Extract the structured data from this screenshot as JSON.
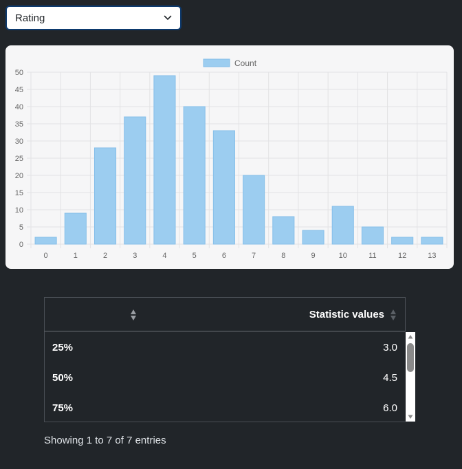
{
  "select": {
    "value": "Rating"
  },
  "chart_data": {
    "type": "bar",
    "categories": [
      "0",
      "1",
      "2",
      "3",
      "4",
      "5",
      "6",
      "7",
      "8",
      "9",
      "10",
      "11",
      "12",
      "13"
    ],
    "series": [
      {
        "name": "Count",
        "values": [
          2,
          9,
          28,
          37,
          49,
          40,
          33,
          20,
          8,
          4,
          11,
          5,
          2,
          2
        ]
      }
    ],
    "ylim": [
      0,
      50
    ],
    "yticks": [
      0,
      5,
      10,
      15,
      20,
      25,
      30,
      35,
      40,
      45,
      50
    ],
    "grid": true,
    "legend": "top-center",
    "bar_color": "#9ccdf0",
    "bar_border": "#86bfe9"
  },
  "table": {
    "header": {
      "col2": "Statistic values"
    },
    "rows": [
      {
        "key": "25%",
        "value": "3.0"
      },
      {
        "key": "50%",
        "value": "4.5"
      },
      {
        "key": "75%",
        "value": "6.0"
      }
    ],
    "info": "Showing 1 to 7 of 7 entries"
  }
}
